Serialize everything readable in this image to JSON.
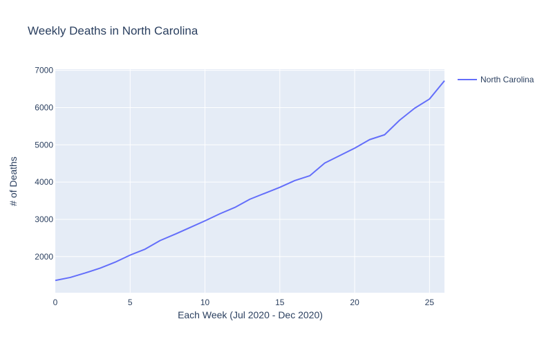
{
  "chart_data": {
    "type": "line",
    "title": "Weekly Deaths in North Carolina",
    "xlabel": "Each Week (Jul 2020 - Dec 2020)",
    "ylabel": "# of Deaths",
    "xlim": [
      0,
      26
    ],
    "ylim": [
      1030,
      7030
    ],
    "x_ticks": [
      0,
      5,
      10,
      15,
      20,
      25
    ],
    "y_ticks": [
      2000,
      3000,
      4000,
      5000,
      6000,
      7000
    ],
    "grid": true,
    "legend_position": "top-right",
    "colors": {
      "plot_bg": "#e5ecf6",
      "grid": "#ffffff",
      "line": "#636efa",
      "text": "#2a3f5f"
    },
    "series": [
      {
        "name": "North Carolina",
        "x": [
          0,
          1,
          2,
          3,
          4,
          5,
          6,
          7,
          8,
          9,
          10,
          11,
          12,
          13,
          14,
          15,
          16,
          17,
          18,
          19,
          20,
          21,
          22,
          23,
          24,
          25,
          26
        ],
        "values": [
          1360,
          1440,
          1560,
          1690,
          1850,
          2040,
          2200,
          2430,
          2600,
          2780,
          2960,
          3150,
          3320,
          3540,
          3700,
          3860,
          4040,
          4170,
          4510,
          4710,
          4910,
          5140,
          5270,
          5660,
          5980,
          6230,
          6720
        ]
      }
    ]
  }
}
